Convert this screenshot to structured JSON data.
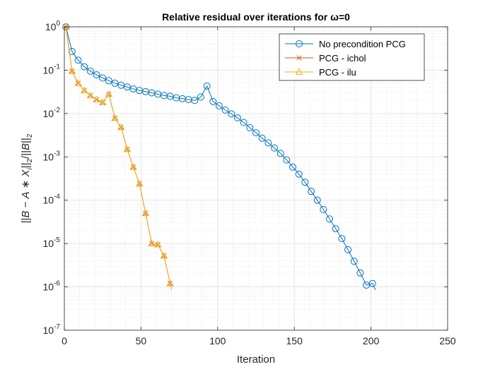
{
  "chart_data": {
    "type": "line",
    "title": "Relative residual over iterations for ω=0",
    "xlabel": "Iteration",
    "ylabel": "||B − A * X_i||_2/||B||_2",
    "xlim": [
      0,
      250
    ],
    "ylim": [
      1e-07,
      1
    ],
    "yscale": "log",
    "grid": true,
    "minor_grid": true,
    "legend_position": "top-right",
    "x_ticks": [
      0,
      50,
      100,
      150,
      200,
      250
    ],
    "x_tick_labels": [
      "0",
      "50",
      "100",
      "150",
      "200",
      "250"
    ],
    "y_ticks": [
      1e-07,
      1e-06,
      1e-05,
      0.0001,
      0.001,
      0.01,
      0.1,
      1
    ],
    "y_tick_labels": [
      {
        "base": "10",
        "exp": "-7"
      },
      {
        "base": "10",
        "exp": "-6"
      },
      {
        "base": "10",
        "exp": "-5"
      },
      {
        "base": "10",
        "exp": "-4"
      },
      {
        "base": "10",
        "exp": "-3"
      },
      {
        "base": "10",
        "exp": "-2"
      },
      {
        "base": "10",
        "exp": "-1"
      },
      {
        "base": "10",
        "exp": "0"
      }
    ],
    "series": [
      {
        "name": "No precondition PCG",
        "color": "#0072BD",
        "marker": "circle",
        "x": [
          1,
          5,
          9,
          13,
          17,
          21,
          25,
          29,
          33,
          37,
          41,
          45,
          49,
          53,
          57,
          61,
          65,
          69,
          73,
          77,
          81,
          85,
          89,
          93,
          97,
          101,
          105,
          109,
          113,
          117,
          121,
          125,
          129,
          133,
          137,
          141,
          145,
          149,
          153,
          157,
          161,
          165,
          169,
          173,
          177,
          181,
          185,
          189,
          193,
          197,
          201,
          203
        ],
        "y": [
          1.0,
          0.27,
          0.17,
          0.12,
          0.095,
          0.078,
          0.066,
          0.057,
          0.05,
          0.045,
          0.041,
          0.037,
          0.034,
          0.032,
          0.03,
          0.028,
          0.026,
          0.025,
          0.023,
          0.022,
          0.021,
          0.02,
          0.024,
          0.043,
          0.019,
          0.015,
          0.012,
          0.0098,
          0.0079,
          0.0062,
          0.0047,
          0.0036,
          0.0027,
          0.0021,
          0.0016,
          0.0012,
          0.00085,
          0.00058,
          0.0004,
          0.00026,
          0.00016,
          0.0001,
          6.1e-05,
          3.7e-05,
          2.2e-05,
          1.3e-05,
          7.2e-06,
          3.9e-06,
          2.1e-06,
          1.1e-06,
          1.2e-06,
          8.5e-07
        ],
        "markers_at": [
          0,
          1,
          2,
          3,
          4,
          5,
          6,
          7,
          8,
          9,
          10,
          11,
          12,
          13,
          14,
          15,
          16,
          17,
          18,
          19,
          20,
          21,
          22,
          23,
          24,
          25,
          26,
          27,
          28,
          29,
          30,
          31,
          32,
          33,
          34,
          35,
          36,
          37,
          38,
          39,
          40,
          41,
          42,
          43,
          44,
          45,
          46,
          47,
          48,
          49,
          50
        ]
      },
      {
        "name": "PCG - ichol",
        "color": "#D95319",
        "marker": "x",
        "x": [
          1,
          5,
          9,
          13,
          17,
          21,
          25,
          29,
          33,
          37,
          41,
          45,
          49,
          53,
          57,
          61,
          65,
          69
        ],
        "y": [
          1.0,
          0.095,
          0.05,
          0.034,
          0.026,
          0.021,
          0.018,
          0.028,
          0.0078,
          0.0048,
          0.0015,
          0.00058,
          0.00024,
          5e-05,
          1e-05,
          9.5e-06,
          5.2e-06,
          1.2e-06
        ],
        "markers_at": [
          0,
          1,
          2,
          3,
          4,
          5,
          6,
          7,
          8,
          9,
          10,
          11,
          12,
          13,
          14,
          15,
          16,
          17
        ]
      },
      {
        "name": "PCG - ilu",
        "color": "#EDB120",
        "marker": "triangle",
        "x": [
          1,
          5,
          9,
          13,
          17,
          21,
          25,
          29,
          33,
          37,
          41,
          45,
          49,
          53,
          57,
          61,
          65,
          69,
          70
        ],
        "y": [
          1.0,
          0.095,
          0.05,
          0.034,
          0.026,
          0.021,
          0.018,
          0.028,
          0.0078,
          0.0048,
          0.0015,
          0.00058,
          0.00024,
          5e-05,
          1e-05,
          9.5e-06,
          5.2e-06,
          1.2e-06,
          8.5e-07
        ],
        "markers_at": [
          0,
          1,
          2,
          3,
          4,
          5,
          6,
          7,
          8,
          9,
          10,
          11,
          12,
          13,
          14,
          15,
          16,
          17
        ]
      }
    ]
  }
}
